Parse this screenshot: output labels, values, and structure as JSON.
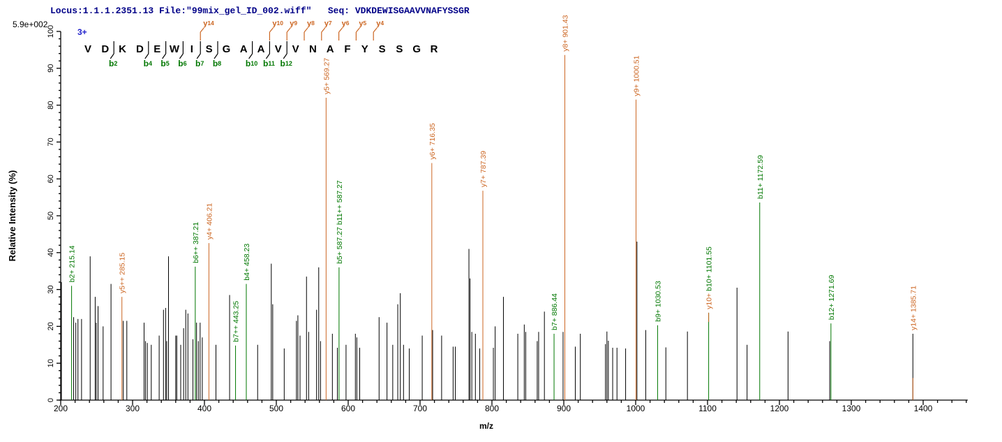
{
  "header": {
    "locus": "Locus:1.1.1.2351.13 File:\"99mix_gel_ID_002.wiff\"",
    "seq": "Seq: VDKDEWISGAAVVNAFYSSGR"
  },
  "annotations": {
    "max_intensity": "5.9e+002",
    "charge": "3+"
  },
  "sequence": {
    "residues": [
      "V",
      "D",
      "K",
      "D",
      "E",
      "W",
      "I",
      "S",
      "G",
      "A",
      "A",
      "V",
      "V",
      "N",
      "A",
      "F",
      "Y",
      "S",
      "S",
      "G",
      "R"
    ],
    "b_ions": [
      {
        "name": "b",
        "num": "2",
        "after": 2
      },
      {
        "name": "b",
        "num": "4",
        "after": 4
      },
      {
        "name": "b",
        "num": "5",
        "after": 5
      },
      {
        "name": "b",
        "num": "6",
        "after": 6
      },
      {
        "name": "b",
        "num": "7",
        "after": 7
      },
      {
        "name": "b",
        "num": "8",
        "after": 8
      },
      {
        "name": "b",
        "num": "10",
        "after": 10
      },
      {
        "name": "b",
        "num": "11",
        "after": 11
      },
      {
        "name": "b",
        "num": "12",
        "after": 12
      }
    ],
    "y_ions": [
      {
        "name": "y",
        "num": "14",
        "after": 7
      },
      {
        "name": "y",
        "num": "10",
        "after": 11
      },
      {
        "name": "y",
        "num": "9",
        "after": 12
      },
      {
        "name": "y",
        "num": "8",
        "after": 13
      },
      {
        "name": "y",
        "num": "7",
        "after": 14
      },
      {
        "name": "y",
        "num": "6",
        "after": 15
      },
      {
        "name": "y",
        "num": "5",
        "after": 16
      },
      {
        "name": "y",
        "num": "4",
        "after": 17
      }
    ]
  },
  "colors": {
    "b_ion": "#007700",
    "y_ion": "#cc6622",
    "peak": "#000000",
    "axis": "#000000",
    "header_text": "#000088",
    "charge": "#2222cc"
  },
  "chart_data": {
    "type": "bar",
    "subtype": "tandem-ms-spectrum",
    "xlabel": "m/z",
    "ylabel": "Relative  Intensity (%)",
    "xlim": [
      200,
      1462
    ],
    "ylim": [
      0,
      100
    ],
    "x_major_tick": 100,
    "x_minor_tick": 20,
    "y_major_tick": 10,
    "y_minor_tick": 2,
    "x_tick_labels": [
      200,
      300,
      400,
      500,
      600,
      700,
      800,
      900,
      1000,
      1100,
      1200,
      1300,
      1400
    ],
    "y_tick_labels": [
      0,
      10,
      20,
      30,
      40,
      50,
      60,
      70,
      80,
      90,
      100
    ],
    "labeled_peaks": [
      {
        "mz": 215.14,
        "intensity": 31.0,
        "ion": "b",
        "segments": [
          {
            "text": "b2+ 215.14",
            "ion": "b"
          }
        ]
      },
      {
        "mz": 285.15,
        "intensity": 28.0,
        "ion": "y",
        "segments": [
          {
            "text": "y5++ 285.15",
            "ion": "y"
          }
        ]
      },
      {
        "mz": 387.21,
        "intensity": 36.2,
        "ion": "b",
        "segments": [
          {
            "text": "b6++ 387.21",
            "ion": "b"
          }
        ]
      },
      {
        "mz": 406.21,
        "intensity": 42.6,
        "ion": "y",
        "segments": [
          {
            "text": "y4+ 406.21",
            "ion": "y"
          }
        ]
      },
      {
        "mz": 443.25,
        "intensity": 14.8,
        "ion": "b",
        "segments": [
          {
            "text": "b7++ 443.25",
            "ion": "b"
          }
        ]
      },
      {
        "mz": 458.23,
        "intensity": 31.5,
        "ion": "b",
        "segments": [
          {
            "text": "b4+ 458.23",
            "ion": "b"
          }
        ]
      },
      {
        "mz": 569.27,
        "intensity": 82.0,
        "ion": "y",
        "segments": [
          {
            "text": "y5+ 569.27",
            "ion": "y"
          }
        ]
      },
      {
        "mz": 587.27,
        "intensity": 36.0,
        "ion": "b",
        "segments": [
          {
            "text": "b5+ 587.27  b11++ 587.27",
            "ion": "b"
          }
        ]
      },
      {
        "mz": 716.35,
        "intensity": 64.3,
        "ion": "y",
        "segments": [
          {
            "text": "y6+ 716.35",
            "ion": "y"
          }
        ]
      },
      {
        "mz": 787.39,
        "intensity": 56.8,
        "ion": "y",
        "segments": [
          {
            "text": "y7+ 787.39",
            "ion": "y"
          }
        ]
      },
      {
        "mz": 886.44,
        "intensity": 18.0,
        "ion": "b",
        "segments": [
          {
            "text": "b7+ 886.44",
            "ion": "b"
          }
        ]
      },
      {
        "mz": 901.43,
        "intensity": 93.6,
        "ion": "y",
        "segments": [
          {
            "text": "y8+ 901.43",
            "ion": "y"
          }
        ]
      },
      {
        "mz": 1000.51,
        "intensity": 81.5,
        "ion": "y",
        "segments": [
          {
            "text": "y9+ 1000.51",
            "ion": "y"
          }
        ]
      },
      {
        "mz": 1030.53,
        "intensity": 20.3,
        "ion": "b",
        "segments": [
          {
            "text": "b9+ 1030.53",
            "ion": "b"
          }
        ]
      },
      {
        "mz": 1101.55,
        "intensity": 23.7,
        "ion": "b",
        "top_tip": 2.5,
        "segments": [
          {
            "text": "y10+ ",
            "ion": "y"
          },
          {
            "text": "b10+ 1101.55",
            "ion": "b"
          }
        ]
      },
      {
        "mz": 1172.59,
        "intensity": 53.6,
        "ion": "b",
        "segments": [
          {
            "text": "b11+ 1172.59",
            "ion": "b"
          }
        ]
      },
      {
        "mz": 1271.69,
        "intensity": 20.8,
        "ion": "b",
        "segments": [
          {
            "text": "b12+ 1271.69",
            "ion": "b"
          }
        ]
      },
      {
        "mz": 1385.71,
        "intensity": 18.0,
        "ion": "y",
        "line": "black",
        "bottom_tip": 6,
        "segments": [
          {
            "text": "y14+ 1385.71",
            "ion": "y"
          }
        ]
      }
    ],
    "unlabeled_peaks": [
      [
        201,
        32
      ],
      [
        218,
        22.5
      ],
      [
        221,
        21
      ],
      [
        224,
        22
      ],
      [
        229,
        22
      ],
      [
        241,
        39
      ],
      [
        248,
        28
      ],
      [
        249.5,
        21
      ],
      [
        252,
        25.5
      ],
      [
        259,
        20
      ],
      [
        270,
        31.5
      ],
      [
        287,
        21.5
      ],
      [
        292,
        21.5
      ],
      [
        316,
        21
      ],
      [
        318,
        16
      ],
      [
        320.5,
        15.5
      ],
      [
        326,
        15
      ],
      [
        337,
        17.5
      ],
      [
        343,
        24.5
      ],
      [
        346,
        25
      ],
      [
        347.5,
        16
      ],
      [
        350,
        39
      ],
      [
        360,
        17.5
      ],
      [
        361.5,
        17.5
      ],
      [
        367,
        15
      ],
      [
        371,
        19.5
      ],
      [
        374,
        24.5
      ],
      [
        377,
        23.5
      ],
      [
        384,
        16.5
      ],
      [
        389,
        21
      ],
      [
        391.5,
        16
      ],
      [
        394,
        21
      ],
      [
        397,
        17
      ],
      [
        416,
        15
      ],
      [
        435,
        28.5
      ],
      [
        474,
        15
      ],
      [
        493,
        37
      ],
      [
        495,
        26
      ],
      [
        511,
        14
      ],
      [
        528,
        21.5
      ],
      [
        530,
        23
      ],
      [
        533,
        17.5
      ],
      [
        542,
        33.5
      ],
      [
        545,
        18.5
      ],
      [
        556,
        24.5
      ],
      [
        559,
        36
      ],
      [
        561.5,
        16
      ],
      [
        578,
        18
      ],
      [
        585,
        14.2
      ],
      [
        597,
        15
      ],
      [
        610,
        18
      ],
      [
        612,
        17
      ],
      [
        616,
        14.2
      ],
      [
        643,
        22.5
      ],
      [
        654,
        21
      ],
      [
        662,
        15
      ],
      [
        669,
        26
      ],
      [
        672.5,
        29
      ],
      [
        677,
        15
      ],
      [
        685,
        14
      ],
      [
        703,
        17.5
      ],
      [
        717.5,
        19
      ],
      [
        730,
        17.5
      ],
      [
        746,
        14.5
      ],
      [
        749,
        14.5
      ],
      [
        768,
        41
      ],
      [
        769.5,
        33
      ],
      [
        772,
        18.5
      ],
      [
        777,
        18
      ],
      [
        783,
        14
      ],
      [
        802,
        14.2
      ],
      [
        804.5,
        20
      ],
      [
        816,
        28
      ],
      [
        836,
        18
      ],
      [
        845,
        20.5
      ],
      [
        847,
        18.5
      ],
      [
        863,
        16
      ],
      [
        865,
        18.5
      ],
      [
        873,
        24
      ],
      [
        899,
        18.5
      ],
      [
        916,
        14.5
      ],
      [
        923,
        18
      ],
      [
        958,
        15.2
      ],
      [
        960,
        18.6
      ],
      [
        962,
        16.1
      ],
      [
        968,
        14.2
      ],
      [
        974,
        14.2
      ],
      [
        986,
        14
      ],
      [
        1001.8,
        43
      ],
      [
        1014,
        19
      ],
      [
        1042,
        14.3
      ],
      [
        1072,
        18.6
      ],
      [
        1141,
        30.5
      ],
      [
        1155,
        15
      ],
      [
        1212,
        18.6
      ],
      [
        1270,
        16
      ]
    ]
  }
}
